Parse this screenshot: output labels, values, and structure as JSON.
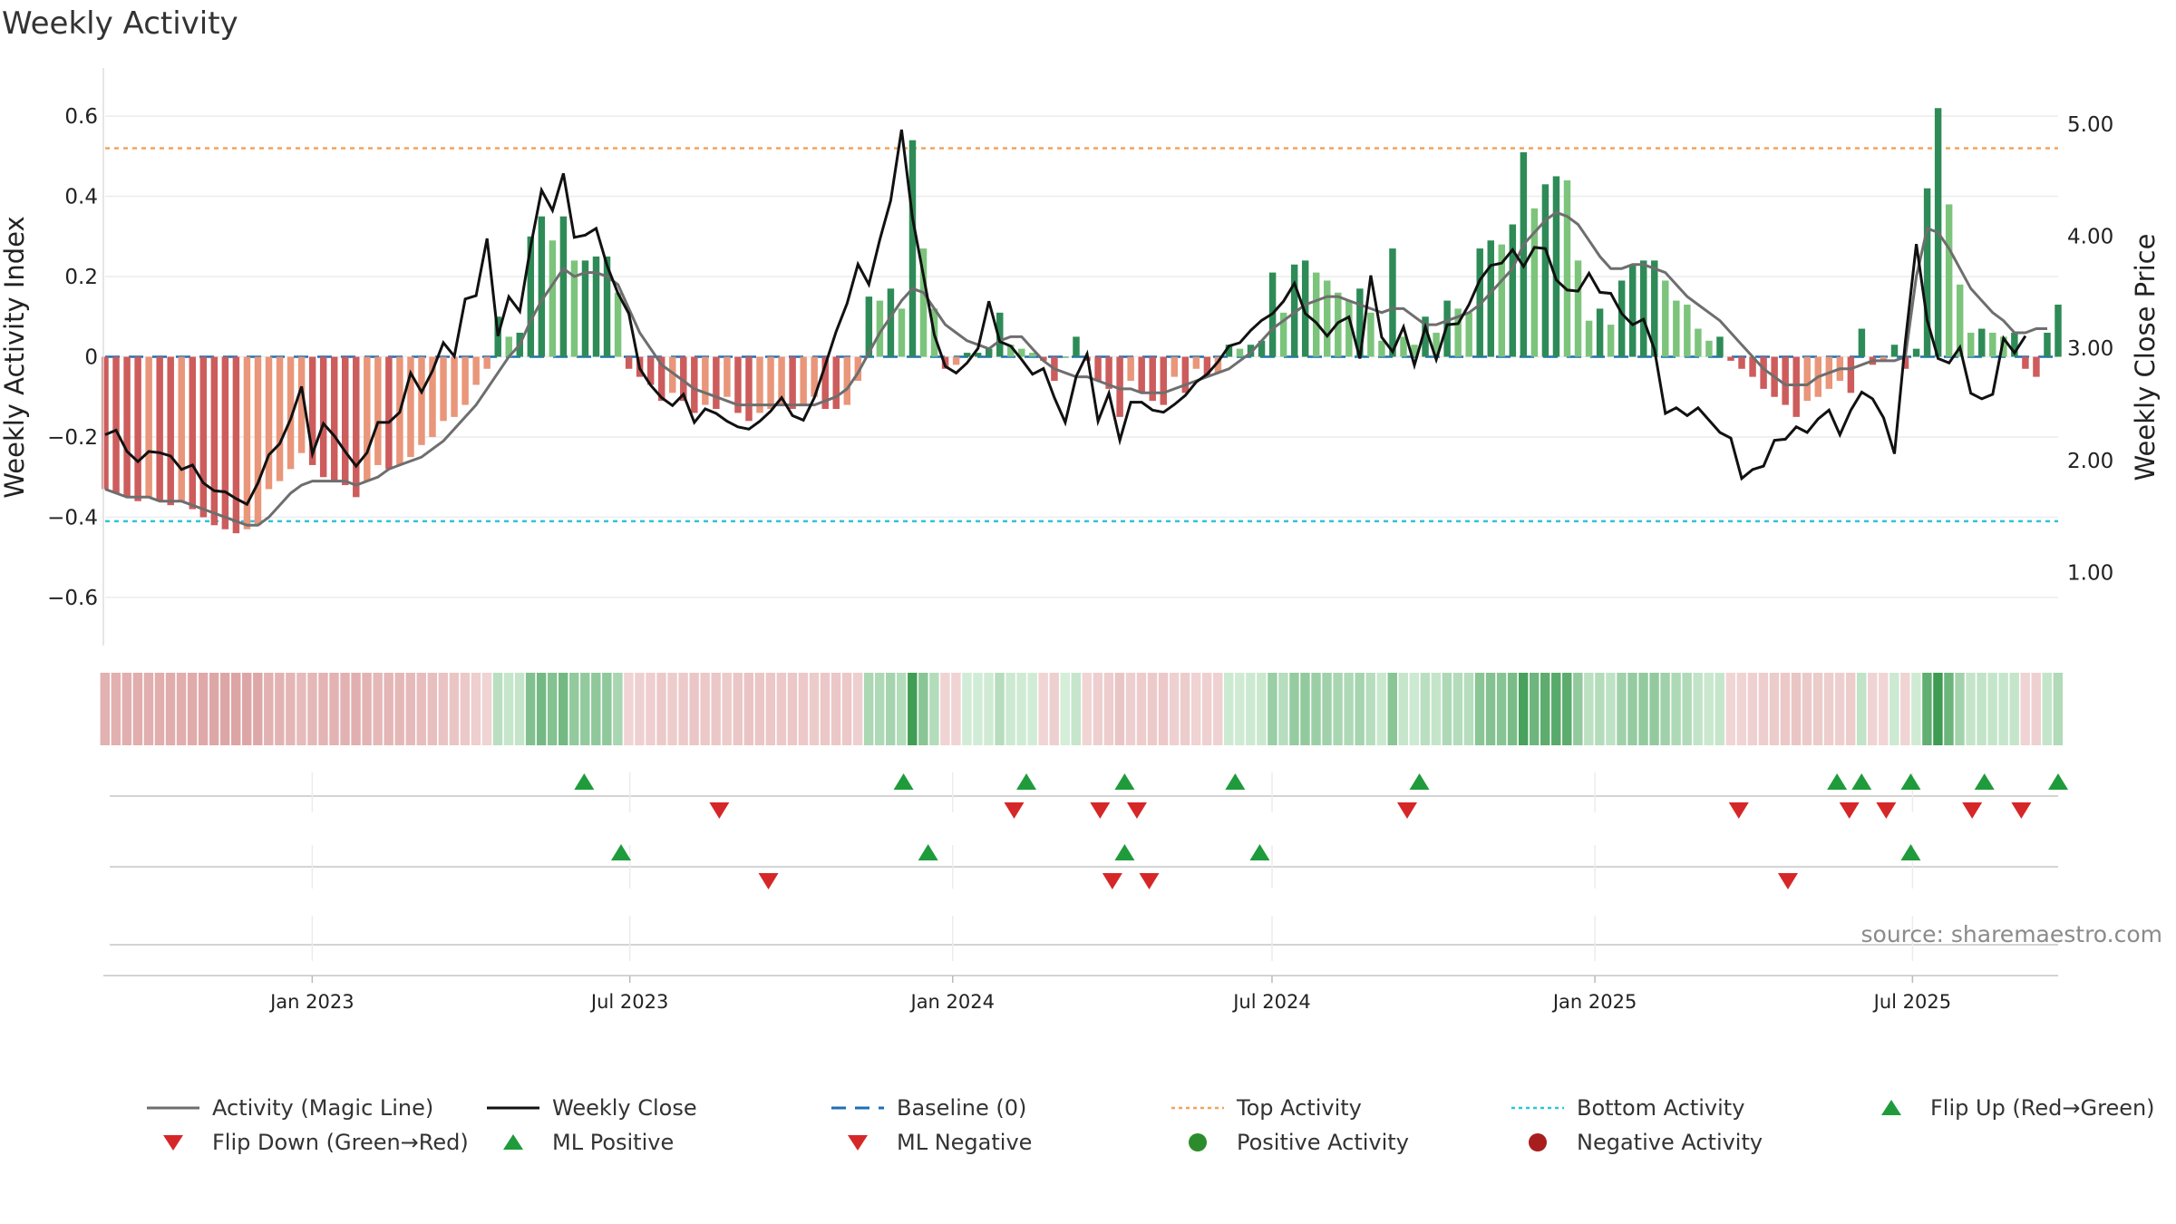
{
  "title": "Weekly Activity",
  "source": "source: sharemaestro.com",
  "colors": {
    "pos_dark": "#2e8b57",
    "pos_light": "#7cc47c",
    "neg_dark": "#cd5c5c",
    "neg_light": "#e9967a",
    "magic": "#6e6e6e",
    "close": "#111111",
    "baseline": "#1f6fb4",
    "top": "#f0a35e",
    "bottom": "#2ec4d8",
    "flip_up": "#1f9b3c",
    "flip_down": "#d62728"
  },
  "chart_data": {
    "type": "bar",
    "title": "Weekly Activity",
    "ylabel": "Weekly Activity Index",
    "y2label": "Weekly Close Price",
    "ylim": [
      -0.72,
      0.72
    ],
    "y2lim": [
      0.35,
      5.5
    ],
    "yticks": [
      -0.6,
      -0.4,
      -0.2,
      0,
      0.2,
      0.4,
      0.6
    ],
    "ytick_labels": [
      "−0.6",
      "−0.4",
      "−0.2",
      "0",
      "0.2",
      "0.4",
      "0.6"
    ],
    "y2ticks": [
      1,
      2,
      3,
      4,
      5
    ],
    "y2tick_labels": [
      "1.00",
      "2.00",
      "3.00",
      "4.00",
      "5.00"
    ],
    "x_start": "2022-09-05",
    "x_end": "2025-09-22",
    "date_ticks": [
      {
        "date": "2023-01-01",
        "label": "Jan 2023"
      },
      {
        "date": "2023-07-01",
        "label": "Jul 2023"
      },
      {
        "date": "2024-01-01",
        "label": "Jan 2024"
      },
      {
        "date": "2024-07-01",
        "label": "Jul 2024"
      },
      {
        "date": "2025-01-01",
        "label": "Jan 2025"
      },
      {
        "date": "2025-07-01",
        "label": "Jul 2025"
      }
    ],
    "top_activity": 0.52,
    "bottom_activity": -0.41,
    "baseline": 0,
    "activity": [
      -0.33,
      -0.34,
      -0.35,
      -0.36,
      -0.35,
      -0.36,
      -0.37,
      -0.36,
      -0.38,
      -0.4,
      -0.42,
      -0.43,
      -0.44,
      -0.43,
      -0.42,
      -0.33,
      -0.31,
      -0.28,
      -0.24,
      -0.27,
      -0.3,
      -0.31,
      -0.32,
      -0.35,
      -0.31,
      -0.27,
      -0.28,
      -0.27,
      -0.25,
      -0.22,
      -0.2,
      -0.16,
      -0.15,
      -0.12,
      -0.07,
      -0.03,
      0.1,
      0.05,
      0.06,
      0.3,
      0.35,
      0.29,
      0.35,
      0.24,
      0.24,
      0.25,
      0.25,
      0.16,
      -0.03,
      -0.05,
      -0.07,
      -0.11,
      -0.09,
      -0.11,
      -0.14,
      -0.12,
      -0.13,
      -0.1,
      -0.14,
      -0.16,
      -0.14,
      -0.13,
      -0.12,
      -0.13,
      -0.12,
      -0.1,
      -0.13,
      -0.13,
      -0.12,
      -0.06,
      0.15,
      0.14,
      0.17,
      0.12,
      0.54,
      0.27,
      0.12,
      -0.03,
      -0.02,
      0.01,
      0.01,
      0.02,
      0.11,
      0.03,
      0.02,
      0.01,
      -0.01,
      -0.06,
      0.0,
      0.05,
      -0.01,
      -0.06,
      -0.08,
      -0.15,
      -0.06,
      -0.09,
      -0.11,
      -0.12,
      -0.05,
      -0.09,
      -0.03,
      -0.05,
      -0.04,
      0.03,
      0.02,
      0.03,
      0.04,
      0.21,
      0.11,
      0.23,
      0.24,
      0.21,
      0.19,
      0.16,
      0.14,
      0.17,
      0.11,
      0.04,
      0.27,
      0.05,
      0.03,
      0.1,
      0.06,
      0.14,
      0.12,
      0.11,
      0.27,
      0.29,
      0.28,
      0.33,
      0.51,
      0.37,
      0.43,
      0.45,
      0.44,
      0.24,
      0.09,
      0.12,
      0.08,
      0.19,
      0.23,
      0.24,
      0.24,
      0.19,
      0.14,
      0.13,
      0.07,
      0.04,
      0.05,
      -0.01,
      -0.03,
      -0.05,
      -0.08,
      -0.1,
      -0.12,
      -0.15,
      -0.11,
      -0.1,
      -0.08,
      -0.06,
      -0.09,
      0.07,
      -0.02,
      -0.01,
      0.03,
      -0.03,
      0.02,
      0.42,
      0.62,
      0.38,
      0.18,
      0.06,
      0.07,
      0.06,
      0.05,
      0.06,
      -0.03,
      -0.05,
      0.06,
      0.13
    ],
    "magic_line": [
      -0.33,
      -0.34,
      -0.35,
      -0.35,
      -0.35,
      -0.36,
      -0.36,
      -0.36,
      -0.37,
      -0.38,
      -0.39,
      -0.4,
      -0.41,
      -0.42,
      -0.42,
      -0.4,
      -0.37,
      -0.34,
      -0.32,
      -0.31,
      -0.31,
      -0.31,
      -0.31,
      -0.32,
      -0.31,
      -0.3,
      -0.28,
      -0.27,
      -0.26,
      -0.25,
      -0.23,
      -0.21,
      -0.18,
      -0.15,
      -0.12,
      -0.08,
      -0.04,
      0.0,
      0.03,
      0.09,
      0.14,
      0.18,
      0.22,
      0.2,
      0.21,
      0.21,
      0.2,
      0.18,
      0.12,
      0.06,
      0.02,
      -0.02,
      -0.04,
      -0.06,
      -0.08,
      -0.09,
      -0.1,
      -0.11,
      -0.12,
      -0.12,
      -0.12,
      -0.12,
      -0.12,
      -0.12,
      -0.12,
      -0.12,
      -0.11,
      -0.1,
      -0.08,
      -0.04,
      0.01,
      0.06,
      0.1,
      0.14,
      0.17,
      0.16,
      0.12,
      0.08,
      0.06,
      0.04,
      0.03,
      0.02,
      0.04,
      0.05,
      0.05,
      0.02,
      -0.01,
      -0.03,
      -0.04,
      -0.05,
      -0.05,
      -0.06,
      -0.07,
      -0.08,
      -0.08,
      -0.09,
      -0.09,
      -0.09,
      -0.08,
      -0.07,
      -0.06,
      -0.05,
      -0.04,
      -0.03,
      -0.01,
      0.01,
      0.04,
      0.07,
      0.09,
      0.11,
      0.13,
      0.14,
      0.15,
      0.15,
      0.14,
      0.13,
      0.12,
      0.11,
      0.12,
      0.12,
      0.1,
      0.08,
      0.08,
      0.09,
      0.1,
      0.11,
      0.13,
      0.16,
      0.19,
      0.22,
      0.28,
      0.31,
      0.34,
      0.36,
      0.35,
      0.33,
      0.29,
      0.25,
      0.22,
      0.22,
      0.23,
      0.23,
      0.22,
      0.21,
      0.18,
      0.15,
      0.13,
      0.11,
      0.09,
      0.06,
      0.03,
      0.0,
      -0.03,
      -0.05,
      -0.07,
      -0.07,
      -0.07,
      -0.05,
      -0.04,
      -0.03,
      -0.03,
      -0.02,
      -0.01,
      -0.01,
      -0.01,
      0.0,
      0.2,
      0.32,
      0.31,
      0.27,
      0.22,
      0.17,
      0.14,
      0.11,
      0.09,
      0.06,
      0.06,
      0.07,
      0.07
    ],
    "close": [
      2.23,
      2.27,
      2.08,
      1.99,
      2.08,
      2.07,
      2.04,
      1.92,
      1.96,
      1.8,
      1.73,
      1.72,
      1.66,
      1.61,
      1.8,
      2.05,
      2.15,
      2.37,
      2.66,
      2.06,
      2.33,
      2.22,
      2.08,
      1.95,
      2.07,
      2.34,
      2.34,
      2.43,
      2.78,
      2.61,
      2.8,
      3.05,
      2.93,
      3.44,
      3.47,
      3.98,
      3.11,
      3.46,
      3.33,
      3.91,
      4.41,
      4.23,
      4.56,
      3.99,
      4.01,
      4.07,
      3.74,
      3.49,
      3.31,
      2.82,
      2.67,
      2.56,
      2.49,
      2.59,
      2.34,
      2.46,
      2.42,
      2.35,
      2.3,
      2.28,
      2.35,
      2.44,
      2.56,
      2.4,
      2.36,
      2.56,
      2.85,
      3.15,
      3.4,
      3.75,
      3.57,
      3.97,
      4.32,
      4.95,
      4.16,
      3.65,
      3.12,
      2.84,
      2.78,
      2.87,
      3.0,
      3.42,
      3.06,
      3.02,
      2.9,
      2.77,
      2.82,
      2.56,
      2.34,
      2.75,
      2.95,
      2.35,
      2.6,
      2.18,
      2.52,
      2.52,
      2.45,
      2.43,
      2.5,
      2.58,
      2.7,
      2.77,
      2.88,
      3.02,
      3.05,
      3.16,
      3.25,
      3.31,
      3.42,
      3.58,
      3.31,
      3.23,
      3.11,
      3.23,
      3.28,
      2.91,
      3.65,
      3.1,
      2.97,
      3.19,
      2.85,
      3.19,
      2.9,
      3.21,
      3.22,
      3.39,
      3.61,
      3.74,
      3.76,
      3.88,
      3.73,
      3.9,
      3.89,
      3.61,
      3.52,
      3.51,
      3.67,
      3.5,
      3.49,
      3.31,
      3.21,
      3.26,
      2.99,
      2.42,
      2.47,
      2.4,
      2.47,
      2.36,
      2.25,
      2.2,
      1.84,
      1.92,
      1.95,
      2.18,
      2.19,
      2.3,
      2.25,
      2.37,
      2.45,
      2.23,
      2.45,
      2.61,
      2.55,
      2.38,
      2.06,
      3.06,
      3.93,
      3.25,
      2.91,
      2.87,
      3.01,
      2.6,
      2.55,
      2.59,
      3.09,
      2.96,
      3.11
    ],
    "flip_up": [
      "2023-06-05",
      "2023-12-04",
      "2024-02-12",
      "2024-04-08",
      "2024-06-10",
      "2024-09-23",
      "2025-05-19",
      "2025-06-02",
      "2025-06-30",
      "2025-08-11",
      "2025-09-22"
    ],
    "flip_down": [
      "2023-08-21",
      "2024-02-05",
      "2024-03-25",
      "2024-04-15",
      "2024-09-16",
      "2025-03-24",
      "2025-05-26",
      "2025-06-16",
      "2025-08-04",
      "2025-09-01"
    ],
    "ml_positive": [
      "2023-06-26",
      "2023-12-18",
      "2024-04-08",
      "2024-06-24",
      "2025-06-30"
    ],
    "ml_negative": [
      "2023-09-18",
      "2024-04-01",
      "2024-04-22",
      "2025-04-21"
    ]
  },
  "legend": [
    {
      "label": "Activity (Magic Line)",
      "marker": "line-gray"
    },
    {
      "label": "Weekly Close",
      "marker": "line-black"
    },
    {
      "label": "Baseline (0)",
      "marker": "line-dashed-blue"
    },
    {
      "label": "Top Activity",
      "marker": "line-dotted-orange"
    },
    {
      "label": "Bottom Activity",
      "marker": "line-dotted-cyan"
    },
    {
      "label": "Flip Up (Red→Green)",
      "marker": "triangle-up-green"
    },
    {
      "label": "Flip Down (Green→Red)",
      "marker": "triangle-down-red"
    },
    {
      "label": "ML Positive",
      "marker": "triangle-up-green"
    },
    {
      "label": "ML Negative",
      "marker": "triangle-down-red"
    },
    {
      "label": "Positive Activity",
      "marker": "circle-green"
    },
    {
      "label": "Negative Activity",
      "marker": "circle-darkred"
    }
  ]
}
